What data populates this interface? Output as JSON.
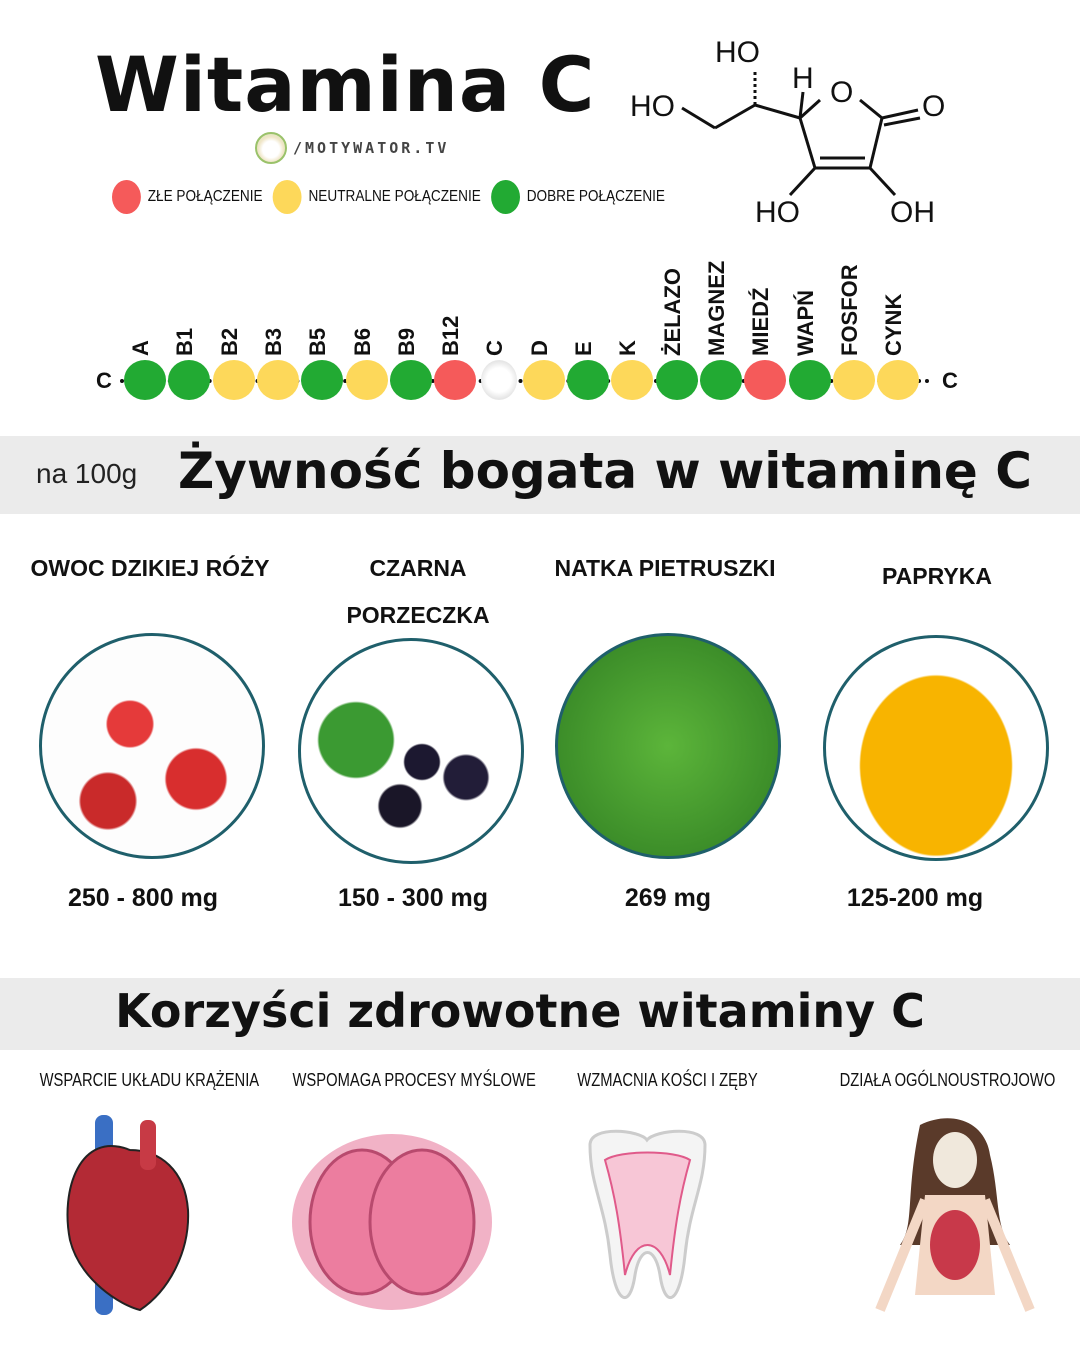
{
  "header": {
    "title": "Witamina C",
    "logo_text": "/MOTYWATOR.TV"
  },
  "legend": [
    {
      "label": "ZŁE POŁĄCZENIE",
      "color": "#f55a5a"
    },
    {
      "label": "NEUTRALNE POŁĄCZENIE",
      "color": "#fdd85a"
    },
    {
      "label": "DOBRE POŁĄCZENIE",
      "color": "#22aa33"
    }
  ],
  "molecule": {
    "labels": [
      "HO",
      "HO",
      "H",
      "O",
      "O",
      "HO",
      "OH"
    ]
  },
  "chain": {
    "end_label": "C",
    "items": [
      {
        "label": "A",
        "status": "good"
      },
      {
        "label": "B1",
        "status": "good"
      },
      {
        "label": "B2",
        "status": "neutral"
      },
      {
        "label": "B3",
        "status": "neutral"
      },
      {
        "label": "B5",
        "status": "good"
      },
      {
        "label": "B6",
        "status": "neutral"
      },
      {
        "label": "B9",
        "status": "good"
      },
      {
        "label": "B12",
        "status": "bad"
      },
      {
        "label": "C",
        "status": "self"
      },
      {
        "label": "D",
        "status": "neutral"
      },
      {
        "label": "E",
        "status": "good"
      },
      {
        "label": "K",
        "status": "neutral"
      },
      {
        "label": "ŻELAZO",
        "status": "good"
      },
      {
        "label": "MAGNEZ",
        "status": "good"
      },
      {
        "label": "MIEDŹ",
        "status": "bad"
      },
      {
        "label": "WAPŃ",
        "status": "good"
      },
      {
        "label": "FOSFOR",
        "status": "neutral"
      },
      {
        "label": "CYNK",
        "status": "neutral"
      }
    ]
  },
  "foods": {
    "unit_note": "na 100g",
    "title": "Żywność bogata w witaminę C",
    "items": [
      {
        "name": "OWOC DZIKIEJ RÓŻY",
        "value": "250 - 800 mg"
      },
      {
        "name": "CZARNA PORZECZKA",
        "value": "150 - 300 mg"
      },
      {
        "name": "NATKA PIETRUSZKI",
        "value": "269 mg"
      },
      {
        "name": "PAPRYKA",
        "value": "125-200 mg"
      }
    ]
  },
  "benefits": {
    "title": "Korzyści zdrowotne witaminy C",
    "items": [
      {
        "label": "WSPARCIE UKŁADU KRĄŻENIA",
        "icon": "heart-icon"
      },
      {
        "label": "WSPOMAGA PROCESY MYŚLOWE",
        "icon": "brain-icon"
      },
      {
        "label": "WZMACNIA KOŚCI I ZĘBY",
        "icon": "tooth-icon"
      },
      {
        "label": "DZIAŁA OGÓLNOUSTROJOWO",
        "icon": "body-icon"
      }
    ]
  }
}
